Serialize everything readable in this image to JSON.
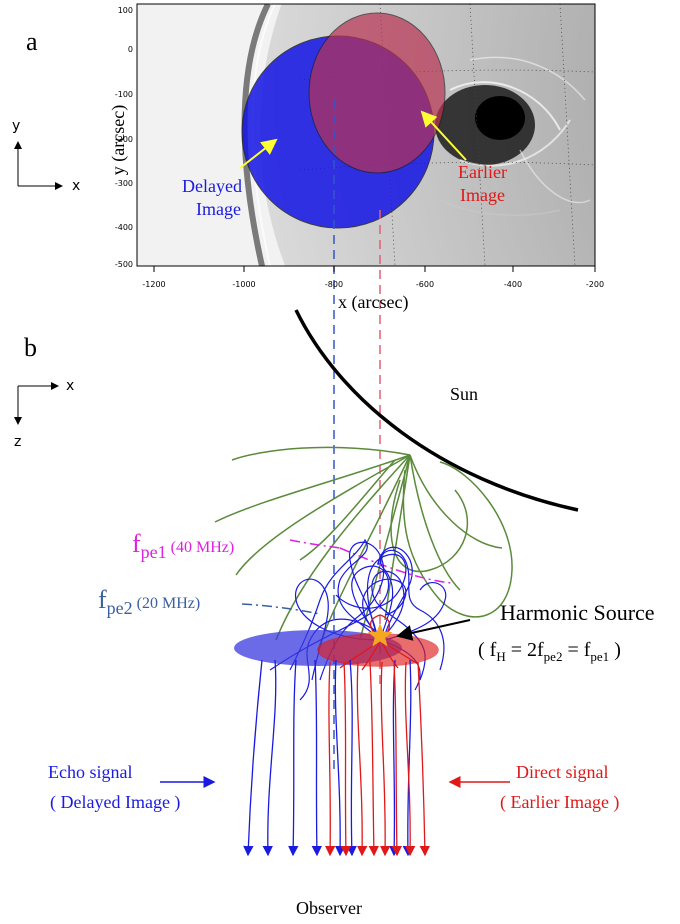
{
  "panel_a": {
    "label": "a",
    "axis_hint": {
      "y": "y",
      "x": "x"
    },
    "xlabel": "x (arcsec)",
    "ylabel": "y (arcsec)",
    "x_ticks": [
      "-1200",
      "-1000",
      "-800",
      "-600",
      "-400",
      "-200"
    ],
    "y_ticks": [
      "100",
      "0",
      "-100",
      "-200",
      "-300",
      "-400",
      "-500"
    ],
    "delayed_label": [
      "Delayed",
      "Image"
    ],
    "earlier_label": [
      "Earlier",
      "Image"
    ],
    "colors": {
      "delayed": "#1414e6",
      "earlier": "#b83252",
      "arrow": "#ffff33"
    }
  },
  "panel_b": {
    "label": "b",
    "axis_hint": {
      "x": "x",
      "z": "z"
    },
    "sun_label": "Sun",
    "fpe1_main": "f",
    "fpe1_sub": "pe1",
    "fpe1_freq": "(40 MHz)",
    "fpe2_main": "f",
    "fpe2_sub": "pe2",
    "fpe2_freq": "(20 MHz)",
    "harmonic_title": "Harmonic Source",
    "harmonic_eq": {
      "open": "( f",
      "h_sub": "H",
      "eq1": " = 2f",
      "pe2_sub": "pe2",
      "eq2": " = f",
      "pe1_sub": "pe1",
      "close": " )"
    },
    "echo_label": [
      "Echo signal",
      "( Delayed Image )"
    ],
    "direct_label": [
      "Direct signal",
      "( Earlier Image )"
    ],
    "observer_label": "Observer",
    "colors": {
      "field_lines": "#5a8a3a",
      "fpe1": "#e020e0",
      "fpe2": "#3a60a0",
      "echo": "#1a1ae0",
      "direct": "#e01818",
      "star": "#f5a623"
    }
  }
}
